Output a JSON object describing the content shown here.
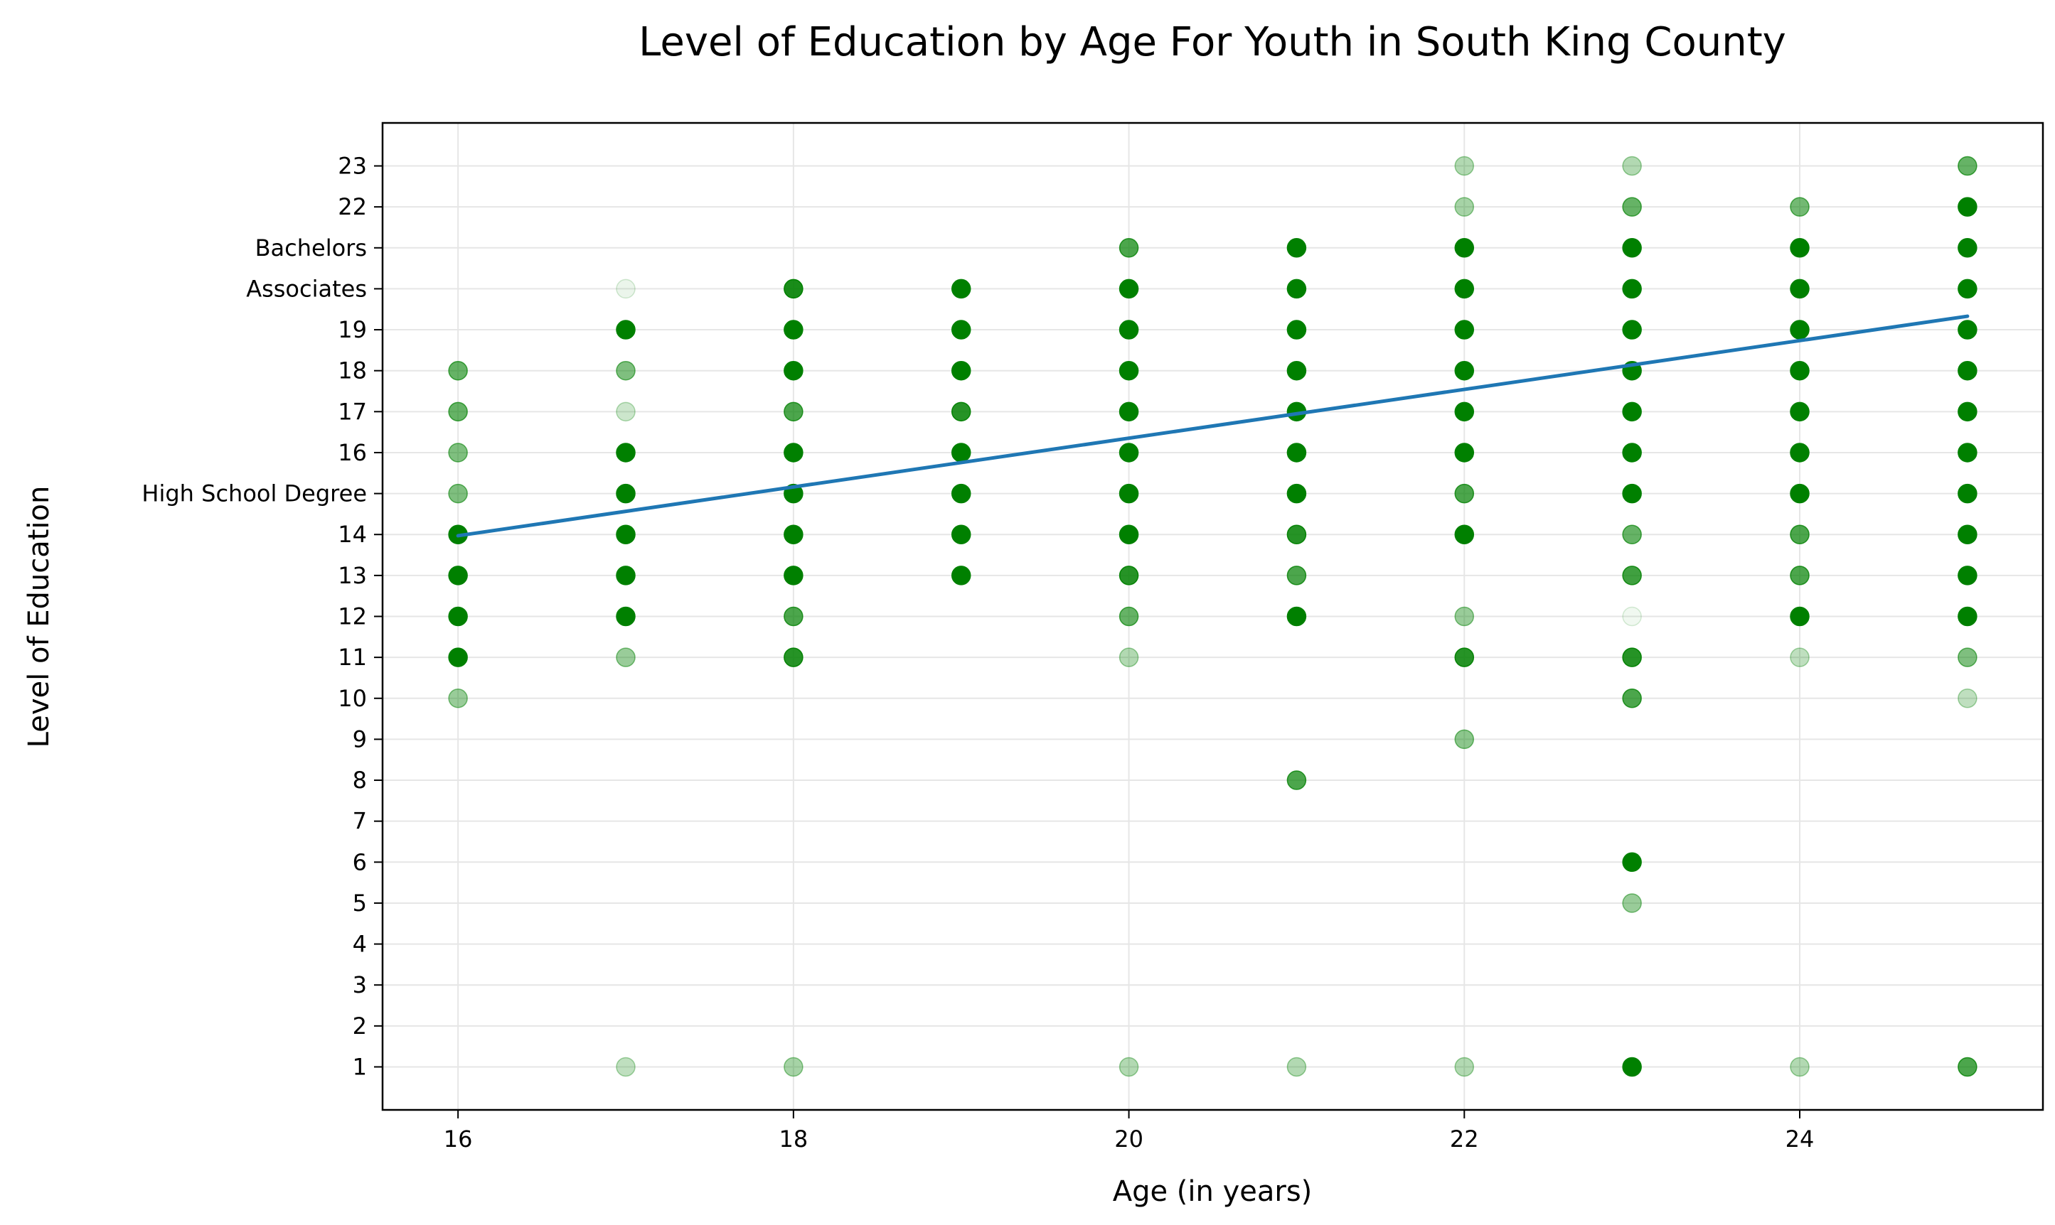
{
  "chart_data": {
    "type": "scatter",
    "title": "Level of Education by Age For Youth in South King County",
    "xlabel": "Age (in years)",
    "ylabel": "Level of Education",
    "xlim": [
      15.55,
      25.45
    ],
    "ylim": [
      -0.05,
      24.05
    ],
    "xticks": [
      16,
      18,
      20,
      22,
      24
    ],
    "yticks": [
      {
        "value": 1,
        "label": "1"
      },
      {
        "value": 2,
        "label": "2"
      },
      {
        "value": 3,
        "label": "3"
      },
      {
        "value": 4,
        "label": "4"
      },
      {
        "value": 5,
        "label": "5"
      },
      {
        "value": 6,
        "label": "6"
      },
      {
        "value": 7,
        "label": "7"
      },
      {
        "value": 8,
        "label": "8"
      },
      {
        "value": 9,
        "label": "9"
      },
      {
        "value": 10,
        "label": "10"
      },
      {
        "value": 11,
        "label": "11"
      },
      {
        "value": 12,
        "label": "12"
      },
      {
        "value": 13,
        "label": "13"
      },
      {
        "value": 14,
        "label": "14"
      },
      {
        "value": 15,
        "label": "High School Degree"
      },
      {
        "value": 16,
        "label": "16"
      },
      {
        "value": 17,
        "label": "17"
      },
      {
        "value": 18,
        "label": "18"
      },
      {
        "value": 19,
        "label": "19"
      },
      {
        "value": 20,
        "label": "Associates"
      },
      {
        "value": 21,
        "label": "Bachelors"
      },
      {
        "value": 22,
        "label": "22"
      },
      {
        "value": 23,
        "label": "23"
      }
    ],
    "grid": true,
    "point_color": "#008000",
    "trend_color": "#1f77b4",
    "points": [
      {
        "x": 16,
        "y": 10,
        "opacity": 0.4
      },
      {
        "x": 16,
        "y": 11,
        "opacity": 1.0
      },
      {
        "x": 16,
        "y": 12,
        "opacity": 1.0
      },
      {
        "x": 16,
        "y": 13,
        "opacity": 1.0
      },
      {
        "x": 16,
        "y": 14,
        "opacity": 1.0
      },
      {
        "x": 16,
        "y": 15,
        "opacity": 0.5
      },
      {
        "x": 16,
        "y": 16,
        "opacity": 0.5
      },
      {
        "x": 16,
        "y": 17,
        "opacity": 0.6
      },
      {
        "x": 16,
        "y": 18,
        "opacity": 0.6
      },
      {
        "x": 17,
        "y": 1,
        "opacity": 0.25
      },
      {
        "x": 17,
        "y": 11,
        "opacity": 0.4
      },
      {
        "x": 17,
        "y": 12,
        "opacity": 1.0
      },
      {
        "x": 17,
        "y": 13,
        "opacity": 1.0
      },
      {
        "x": 17,
        "y": 14,
        "opacity": 1.0
      },
      {
        "x": 17,
        "y": 15,
        "opacity": 1.0
      },
      {
        "x": 17,
        "y": 16,
        "opacity": 1.0
      },
      {
        "x": 17,
        "y": 17,
        "opacity": 0.2
      },
      {
        "x": 17,
        "y": 18,
        "opacity": 0.5
      },
      {
        "x": 17,
        "y": 19,
        "opacity": 1.0
      },
      {
        "x": 17,
        "y": 20,
        "opacity": 0.08
      },
      {
        "x": 18,
        "y": 1,
        "opacity": 0.35
      },
      {
        "x": 18,
        "y": 11,
        "opacity": 0.85
      },
      {
        "x": 18,
        "y": 12,
        "opacity": 0.7
      },
      {
        "x": 18,
        "y": 13,
        "opacity": 1.0
      },
      {
        "x": 18,
        "y": 14,
        "opacity": 1.0
      },
      {
        "x": 18,
        "y": 15,
        "opacity": 1.0
      },
      {
        "x": 18,
        "y": 16,
        "opacity": 1.0
      },
      {
        "x": 18,
        "y": 17,
        "opacity": 0.7
      },
      {
        "x": 18,
        "y": 18,
        "opacity": 1.0
      },
      {
        "x": 18,
        "y": 19,
        "opacity": 1.0
      },
      {
        "x": 18,
        "y": 20,
        "opacity": 0.9
      },
      {
        "x": 19,
        "y": 13,
        "opacity": 1.0
      },
      {
        "x": 19,
        "y": 14,
        "opacity": 1.0
      },
      {
        "x": 19,
        "y": 15,
        "opacity": 1.0
      },
      {
        "x": 19,
        "y": 16,
        "opacity": 1.0
      },
      {
        "x": 19,
        "y": 17,
        "opacity": 0.85
      },
      {
        "x": 19,
        "y": 18,
        "opacity": 1.0
      },
      {
        "x": 19,
        "y": 19,
        "opacity": 1.0
      },
      {
        "x": 19,
        "y": 20,
        "opacity": 1.0
      },
      {
        "x": 20,
        "y": 1,
        "opacity": 0.3
      },
      {
        "x": 20,
        "y": 11,
        "opacity": 0.3
      },
      {
        "x": 20,
        "y": 12,
        "opacity": 0.6
      },
      {
        "x": 20,
        "y": 13,
        "opacity": 0.85
      },
      {
        "x": 20,
        "y": 14,
        "opacity": 1.0
      },
      {
        "x": 20,
        "y": 15,
        "opacity": 1.0
      },
      {
        "x": 20,
        "y": 16,
        "opacity": 1.0
      },
      {
        "x": 20,
        "y": 17,
        "opacity": 1.0
      },
      {
        "x": 20,
        "y": 18,
        "opacity": 1.0
      },
      {
        "x": 20,
        "y": 19,
        "opacity": 1.0
      },
      {
        "x": 20,
        "y": 20,
        "opacity": 1.0
      },
      {
        "x": 20,
        "y": 21,
        "opacity": 0.7
      },
      {
        "x": 21,
        "y": 1,
        "opacity": 0.3
      },
      {
        "x": 21,
        "y": 8,
        "opacity": 0.7
      },
      {
        "x": 21,
        "y": 12,
        "opacity": 1.0
      },
      {
        "x": 21,
        "y": 13,
        "opacity": 0.7
      },
      {
        "x": 21,
        "y": 14,
        "opacity": 0.85
      },
      {
        "x": 21,
        "y": 15,
        "opacity": 1.0
      },
      {
        "x": 21,
        "y": 16,
        "opacity": 1.0
      },
      {
        "x": 21,
        "y": 17,
        "opacity": 1.0
      },
      {
        "x": 21,
        "y": 18,
        "opacity": 1.0
      },
      {
        "x": 21,
        "y": 19,
        "opacity": 1.0
      },
      {
        "x": 21,
        "y": 20,
        "opacity": 1.0
      },
      {
        "x": 21,
        "y": 21,
        "opacity": 1.0
      },
      {
        "x": 22,
        "y": 1,
        "opacity": 0.3
      },
      {
        "x": 22,
        "y": 9,
        "opacity": 0.45
      },
      {
        "x": 22,
        "y": 11,
        "opacity": 0.85
      },
      {
        "x": 22,
        "y": 12,
        "opacity": 0.4
      },
      {
        "x": 22,
        "y": 14,
        "opacity": 1.0
      },
      {
        "x": 22,
        "y": 15,
        "opacity": 0.7
      },
      {
        "x": 22,
        "y": 16,
        "opacity": 1.0
      },
      {
        "x": 22,
        "y": 17,
        "opacity": 1.0
      },
      {
        "x": 22,
        "y": 18,
        "opacity": 1.0
      },
      {
        "x": 22,
        "y": 19,
        "opacity": 1.0
      },
      {
        "x": 22,
        "y": 20,
        "opacity": 1.0
      },
      {
        "x": 22,
        "y": 21,
        "opacity": 1.0
      },
      {
        "x": 22,
        "y": 22,
        "opacity": 0.35
      },
      {
        "x": 22,
        "y": 23,
        "opacity": 0.3
      },
      {
        "x": 23,
        "y": 1,
        "opacity": 1.0
      },
      {
        "x": 23,
        "y": 5,
        "opacity": 0.4
      },
      {
        "x": 23,
        "y": 6,
        "opacity": 1.0
      },
      {
        "x": 23,
        "y": 10,
        "opacity": 0.7
      },
      {
        "x": 23,
        "y": 11,
        "opacity": 0.85
      },
      {
        "x": 23,
        "y": 12,
        "opacity": 0.06
      },
      {
        "x": 23,
        "y": 13,
        "opacity": 0.75
      },
      {
        "x": 23,
        "y": 14,
        "opacity": 0.6
      },
      {
        "x": 23,
        "y": 15,
        "opacity": 1.0
      },
      {
        "x": 23,
        "y": 16,
        "opacity": 1.0
      },
      {
        "x": 23,
        "y": 17,
        "opacity": 1.0
      },
      {
        "x": 23,
        "y": 18,
        "opacity": 1.0
      },
      {
        "x": 23,
        "y": 19,
        "opacity": 1.0
      },
      {
        "x": 23,
        "y": 20,
        "opacity": 1.0
      },
      {
        "x": 23,
        "y": 21,
        "opacity": 1.0
      },
      {
        "x": 23,
        "y": 22,
        "opacity": 0.6
      },
      {
        "x": 23,
        "y": 23,
        "opacity": 0.3
      },
      {
        "x": 24,
        "y": 1,
        "opacity": 0.3
      },
      {
        "x": 24,
        "y": 11,
        "opacity": 0.25
      },
      {
        "x": 24,
        "y": 12,
        "opacity": 1.0
      },
      {
        "x": 24,
        "y": 13,
        "opacity": 0.7
      },
      {
        "x": 24,
        "y": 14,
        "opacity": 0.7
      },
      {
        "x": 24,
        "y": 15,
        "opacity": 1.0
      },
      {
        "x": 24,
        "y": 16,
        "opacity": 1.0
      },
      {
        "x": 24,
        "y": 17,
        "opacity": 1.0
      },
      {
        "x": 24,
        "y": 18,
        "opacity": 1.0
      },
      {
        "x": 24,
        "y": 19,
        "opacity": 1.0
      },
      {
        "x": 24,
        "y": 20,
        "opacity": 1.0
      },
      {
        "x": 24,
        "y": 21,
        "opacity": 1.0
      },
      {
        "x": 24,
        "y": 22,
        "opacity": 0.55
      },
      {
        "x": 25,
        "y": 1,
        "opacity": 0.7
      },
      {
        "x": 25,
        "y": 10,
        "opacity": 0.25
      },
      {
        "x": 25,
        "y": 11,
        "opacity": 0.5
      },
      {
        "x": 25,
        "y": 12,
        "opacity": 1.0
      },
      {
        "x": 25,
        "y": 13,
        "opacity": 1.0
      },
      {
        "x": 25,
        "y": 14,
        "opacity": 1.0
      },
      {
        "x": 25,
        "y": 15,
        "opacity": 1.0
      },
      {
        "x": 25,
        "y": 16,
        "opacity": 1.0
      },
      {
        "x": 25,
        "y": 17,
        "opacity": 1.0
      },
      {
        "x": 25,
        "y": 18,
        "opacity": 1.0
      },
      {
        "x": 25,
        "y": 19,
        "opacity": 1.0
      },
      {
        "x": 25,
        "y": 20,
        "opacity": 1.0
      },
      {
        "x": 25,
        "y": 21,
        "opacity": 1.0
      },
      {
        "x": 25,
        "y": 22,
        "opacity": 1.0
      },
      {
        "x": 25,
        "y": 23,
        "opacity": 0.6
      }
    ],
    "trend_line": {
      "x": [
        16,
        25
      ],
      "y": [
        13.97,
        19.33
      ]
    }
  }
}
